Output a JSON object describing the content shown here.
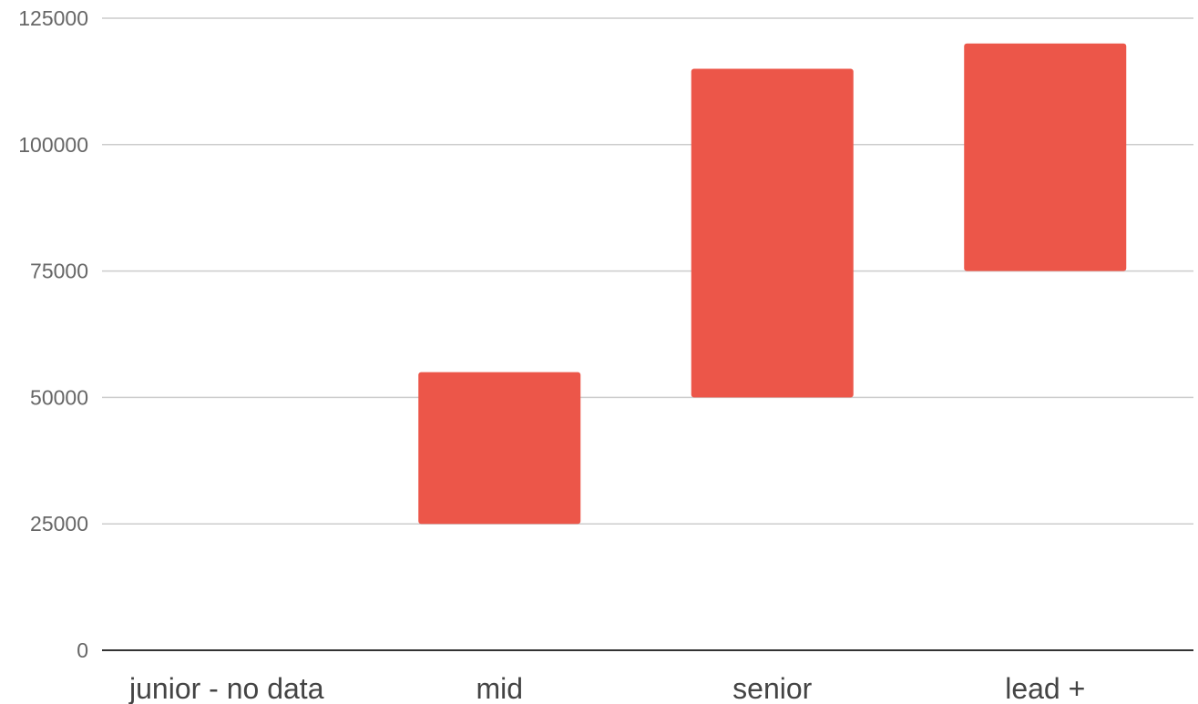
{
  "chart_data": {
    "type": "bar",
    "subtype": "floating-range",
    "title": "",
    "xlabel": "",
    "ylabel": "",
    "categories": [
      "junior - no data",
      "mid",
      "senior",
      "lead +"
    ],
    "ranges": [
      null,
      [
        25000,
        55000
      ],
      [
        50000,
        115000
      ],
      [
        75000,
        120000
      ]
    ],
    "ylim": [
      0,
      125000
    ],
    "yticks": [
      {
        "value": 0,
        "label": "0"
      },
      {
        "value": 25000,
        "label": "25000"
      },
      {
        "value": 50000,
        "label": "50000"
      },
      {
        "value": 75000,
        "label": "75000"
      },
      {
        "value": 100000,
        "label": "100000"
      },
      {
        "value": 125000,
        "label": "125000"
      }
    ],
    "grid": true,
    "legend": "none",
    "bar_color": "#ec5649"
  }
}
